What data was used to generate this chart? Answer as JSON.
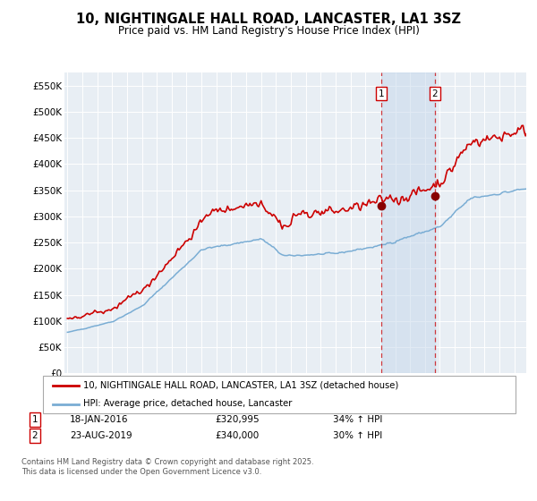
{
  "title": "10, NIGHTINGALE HALL ROAD, LANCASTER, LA1 3SZ",
  "subtitle": "Price paid vs. HM Land Registry's House Price Index (HPI)",
  "legend_label_red": "10, NIGHTINGALE HALL ROAD, LANCASTER, LA1 3SZ (detached house)",
  "legend_label_blue": "HPI: Average price, detached house, Lancaster",
  "sale1_date": "18-JAN-2016",
  "sale1_price": 320995,
  "sale1_hpi": "34% ↑ HPI",
  "sale2_date": "23-AUG-2019",
  "sale2_price": 340000,
  "sale2_hpi": "30% ↑ HPI",
  "footnote": "Contains HM Land Registry data © Crown copyright and database right 2025.\nThis data is licensed under the Open Government Licence v3.0.",
  "red_color": "#cc0000",
  "blue_color": "#7aadd4",
  "background_color": "#e8eef4",
  "grid_color": "#ffffff",
  "ylim": [
    0,
    575000
  ],
  "yticks": [
    0,
    50000,
    100000,
    150000,
    200000,
    250000,
    300000,
    350000,
    400000,
    450000,
    500000,
    550000
  ],
  "ytick_labels": [
    "£0",
    "£50K",
    "£100K",
    "£150K",
    "£200K",
    "£250K",
    "£300K",
    "£350K",
    "£400K",
    "£450K",
    "£500K",
    "£550K"
  ],
  "sale1_year": 2016.05,
  "sale2_year": 2019.65,
  "xlim_min": 1994.8,
  "xlim_max": 2025.8
}
